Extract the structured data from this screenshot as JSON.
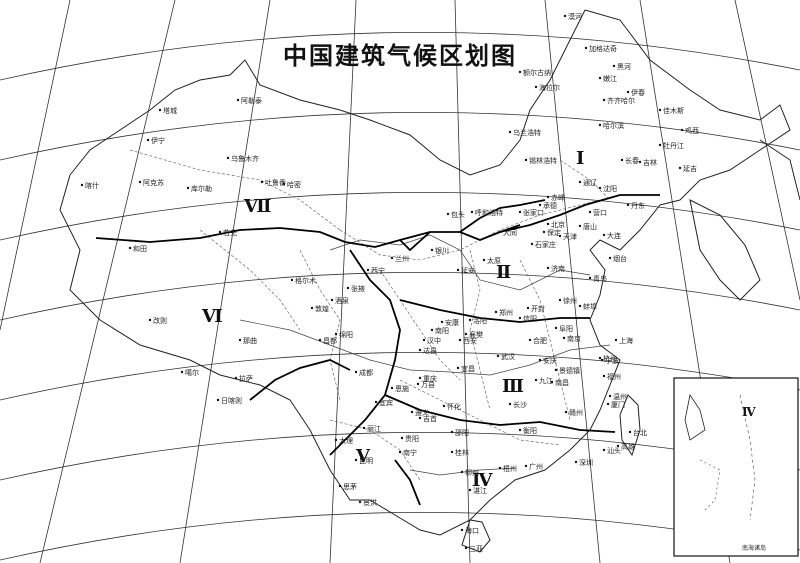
{
  "map": {
    "title": "中国建筑气候区划图",
    "zones": [
      {
        "id": "zone-1",
        "label": "Ⅰ"
      },
      {
        "id": "zone-2",
        "label": "Ⅱ"
      },
      {
        "id": "zone-3",
        "label": "Ⅲ"
      },
      {
        "id": "zone-4",
        "label": "Ⅳ"
      },
      {
        "id": "zone-5",
        "label": "Ⅴ"
      },
      {
        "id": "zone-6",
        "label": "Ⅵ"
      },
      {
        "id": "zone-7",
        "label": "Ⅶ"
      }
    ],
    "inset": {
      "zone": "Ⅳ",
      "label": "南海诸岛"
    },
    "cities": [
      "漠河",
      "加格达奇",
      "黑河",
      "额尔古纳",
      "嫩江",
      "海拉尔",
      "伊春",
      "齐齐哈尔",
      "佳木斯",
      "鸡西",
      "哈尔滨",
      "牡丹江",
      "长春",
      "吉林",
      "延吉",
      "乌兰浩特",
      "锡林浩特",
      "赤峰",
      "通辽",
      "沈阳",
      "丹东",
      "大连",
      "营口",
      "承德",
      "张家口",
      "北京",
      "天津",
      "唐山",
      "石家庄",
      "保定",
      "太原",
      "大同",
      "呼和浩特",
      "包头",
      "济南",
      "青岛",
      "烟台",
      "徐州",
      "郑州",
      "开封",
      "洛阳",
      "西安",
      "延安",
      "银川",
      "兰州",
      "西宁",
      "格尔木",
      "敦煌",
      "酒泉",
      "张掖",
      "哈密",
      "吐鲁番",
      "乌鲁木齐",
      "库尔勒",
      "阿克苏",
      "喀什",
      "和田",
      "若羌",
      "塔城",
      "伊宁",
      "阿勒泰",
      "拉萨",
      "日喀则",
      "昌都",
      "那曲",
      "改则",
      "噶尔",
      "成都",
      "重庆",
      "绵阳",
      "宜宾",
      "贵阳",
      "遵义",
      "昆明",
      "大理",
      "丽江",
      "思茅",
      "景洪",
      "南宁",
      "桂林",
      "柳州",
      "梧州",
      "广州",
      "深圳",
      "汕头",
      "湛江",
      "海口",
      "三亚",
      "长沙",
      "衡阳",
      "南昌",
      "赣州",
      "福州",
      "厦门",
      "台北",
      "高雄",
      "杭州",
      "温州",
      "上海",
      "南京",
      "合肥",
      "安庆",
      "武汉",
      "宜昌",
      "襄樊",
      "南阳",
      "信阳",
      "汉中",
      "安康",
      "达县",
      "万县",
      "恩施",
      "吉首",
      "怀化",
      "邵阳",
      "九江",
      "景德镇",
      "宁波",
      "蚌埠",
      "阜阳"
    ]
  }
}
